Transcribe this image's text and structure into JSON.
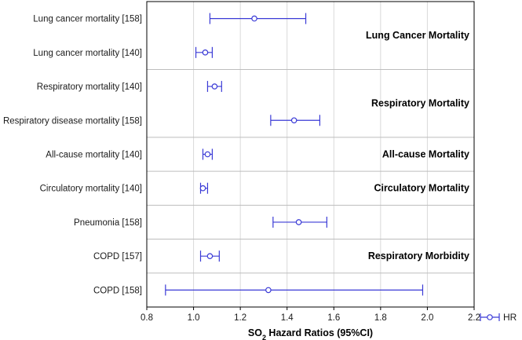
{
  "chart_data": {
    "type": "forest",
    "xlabel": {
      "prefix": "SO",
      "subscript": "2",
      "suffix": " Hazard Ratios (95%CI)"
    },
    "xlim": [
      0.8,
      2.2
    ],
    "xticks": [
      "0.8",
      "1.0",
      "1.2",
      "1.4",
      "1.6",
      "1.8",
      "2.0",
      "2.2"
    ],
    "grid": true,
    "legend": {
      "label": "HR",
      "position": "bottom-right"
    },
    "colors": {
      "series": "#3a3ad6",
      "grid": "#d9d9d9",
      "separator": "#bdbdbd",
      "axis": "#000000"
    },
    "rows": [
      {
        "label": "Lung cancer mortality [158]",
        "hr": 1.26,
        "lo": 1.07,
        "hi": 1.48
      },
      {
        "label": "Lung cancer mortality [140]",
        "hr": 1.05,
        "lo": 1.01,
        "hi": 1.08
      },
      {
        "label": "Respiratory mortality [140]",
        "hr": 1.09,
        "lo": 1.06,
        "hi": 1.12
      },
      {
        "label": "Respiratory disease mortality [158]",
        "hr": 1.43,
        "lo": 1.33,
        "hi": 1.54
      },
      {
        "label": "All-cause mortality [140]",
        "hr": 1.06,
        "lo": 1.04,
        "hi": 1.08
      },
      {
        "label": "Circulatory mortality [140]",
        "hr": 1.04,
        "lo": 1.03,
        "hi": 1.06
      },
      {
        "label": "Pneumonia [158]",
        "hr": 1.45,
        "lo": 1.34,
        "hi": 1.57
      },
      {
        "label": "COPD [157]",
        "hr": 1.07,
        "lo": 1.03,
        "hi": 1.11
      },
      {
        "label": "COPD [158]",
        "hr": 1.32,
        "lo": 0.88,
        "hi": 1.98
      }
    ],
    "groups": [
      {
        "label": "Lung Cancer Mortality",
        "row_position": 0.5
      },
      {
        "label": "Respiratory Mortality",
        "row_position": 2.5
      },
      {
        "label": "All-cause Mortality",
        "row_position": 4
      },
      {
        "label": "Circulatory Mortality",
        "row_position": 5
      },
      {
        "label": "Respiratory Morbidity",
        "row_position": 7
      }
    ],
    "separators_after_row": [
      1,
      3,
      4,
      5,
      6,
      7
    ]
  }
}
